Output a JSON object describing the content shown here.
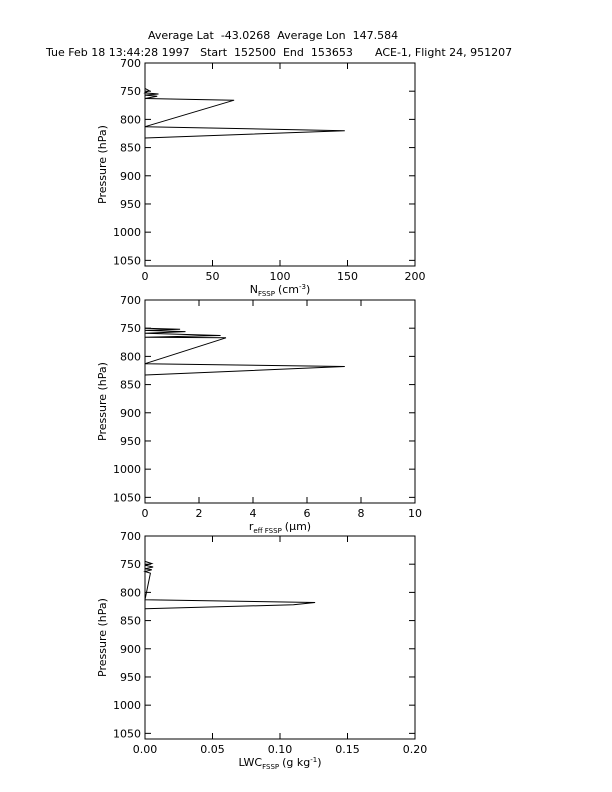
{
  "header": {
    "line1": "Average Lat  -43.0268  Average Lon  147.584",
    "line2_left": "Tue Feb 18 13:44:28 1997   Start  152500  End  153653",
    "line2_right": "ACE-1, Flight 24, 951207"
  },
  "chart_data": [
    {
      "type": "line",
      "ylabel": "Pressure (hPa)",
      "xlabel_main": "N",
      "xlabel_sub": "FSSP",
      "xlabel_units": "(cm",
      "xlabel_units_sup": "-3",
      "xlabel_units_end": ")",
      "xlim": [
        0,
        200
      ],
      "ylim": [
        1060,
        700
      ],
      "xticks": [
        0,
        50,
        100,
        150,
        200
      ],
      "xtick_labels": [
        "0",
        "50",
        "100",
        "150",
        "200"
      ],
      "yticks": [
        700,
        750,
        800,
        850,
        900,
        950,
        1000,
        1050
      ],
      "ytick_labels": [
        "700",
        "750",
        "800",
        "850",
        "900",
        "950",
        "1000",
        "1050"
      ],
      "x": [
        0,
        3,
        0,
        10,
        0,
        9,
        0,
        66,
        0,
        148,
        0
      ],
      "y": [
        745,
        749,
        753,
        755,
        757,
        759,
        763,
        766,
        813,
        820,
        833
      ]
    },
    {
      "type": "line",
      "ylabel": "Pressure (hPa)",
      "xlabel_main": "r",
      "xlabel_sub": "eff FSSP",
      "xlabel_units": "(µm)",
      "xlabel_units_sup": "",
      "xlabel_units_end": "",
      "xlim": [
        0,
        10
      ],
      "ylim": [
        1060,
        700
      ],
      "xticks": [
        0,
        2,
        4,
        6,
        8,
        10
      ],
      "xtick_labels": [
        "0",
        "2",
        "4",
        "6",
        "8",
        "10"
      ],
      "yticks": [
        700,
        750,
        800,
        850,
        900,
        950,
        1000,
        1050
      ],
      "ytick_labels": [
        "700",
        "750",
        "800",
        "850",
        "900",
        "950",
        "1000",
        "1050"
      ],
      "x": [
        0,
        1.3,
        0,
        1.5,
        0,
        2.8,
        0,
        3.0,
        0,
        7.4,
        0
      ],
      "y": [
        750,
        752,
        754,
        756,
        759,
        763,
        766,
        767,
        813,
        818,
        833
      ]
    },
    {
      "type": "line",
      "ylabel": "Pressure (hPa)",
      "xlabel_main": "LWC",
      "xlabel_sub": "FSSP",
      "xlabel_units": "(g kg",
      "xlabel_units_sup": "-1",
      "xlabel_units_end": ")",
      "xlim": [
        0,
        0.2
      ],
      "ylim": [
        1060,
        700
      ],
      "xticks": [
        0,
        0.05,
        0.1,
        0.15,
        0.2
      ],
      "xtick_labels": [
        "0.00",
        "0.05",
        "0.10",
        "0.15",
        "0.20"
      ],
      "yticks": [
        700,
        750,
        800,
        850,
        900,
        950,
        1000,
        1050
      ],
      "ytick_labels": [
        "700",
        "750",
        "800",
        "850",
        "900",
        "950",
        "1000",
        "1050"
      ],
      "x": [
        0,
        0.005,
        0,
        0.006,
        0,
        0.005,
        0,
        0.004,
        0,
        0.126,
        0.11,
        0
      ],
      "y": [
        745,
        749,
        752,
        755,
        758,
        760,
        763,
        766,
        813,
        818,
        822,
        829
      ]
    }
  ]
}
